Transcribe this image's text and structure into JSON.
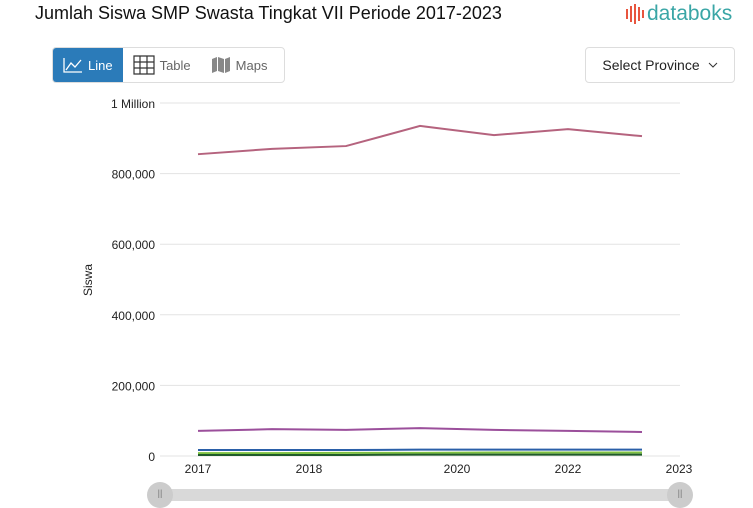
{
  "title": "Jumlah Siswa SMP Swasta Tingkat VII Periode 2017-2023",
  "logo": "databoks",
  "tabs": [
    {
      "label": "Line",
      "icon": "line-chart-icon"
    },
    {
      "label": "Table",
      "icon": "table-icon"
    },
    {
      "label": "Maps",
      "icon": "map-icon"
    }
  ],
  "select": {
    "label": "Select Province"
  },
  "slider": {
    "left_label": "||",
    "right_label": "||"
  },
  "chart_data": {
    "type": "line",
    "title": "Jumlah Siswa SMP Swasta Tingkat VII Periode 2017-2023",
    "ylabel": "Siswa",
    "ylim": [
      0,
      1000000
    ],
    "yticks": [
      {
        "v": 0,
        "label": "0"
      },
      {
        "v": 200000,
        "label": "200,000"
      },
      {
        "v": 400000,
        "label": "400,000"
      },
      {
        "v": 600000,
        "label": "600,000"
      },
      {
        "v": 800000,
        "label": "800,000"
      },
      {
        "v": 1000000,
        "label": "1 Million"
      }
    ],
    "xticks": [
      {
        "x": 0,
        "label": "2017"
      },
      {
        "x": 1.5,
        "label": "2018"
      },
      {
        "x": 3.5,
        "label": "2020"
      },
      {
        "x": 5,
        "label": "2022"
      },
      {
        "x": 6.5,
        "label": "2023"
      }
    ],
    "points": 7,
    "series": [
      {
        "color": "#b5637e",
        "values": [
          855000,
          870000,
          878000,
          935000,
          909000,
          926000,
          906000
        ]
      },
      {
        "color": "#9b4f9b",
        "values": [
          71000,
          76000,
          74000,
          79000,
          74000,
          71000,
          68000
        ]
      },
      {
        "color": "#2a5fa8",
        "values": [
          17000,
          17000,
          17000,
          18000,
          18000,
          18000,
          18000
        ]
      },
      {
        "color": "#7fc241",
        "values": [
          8000,
          8000,
          9000,
          9000,
          10000,
          10000,
          10000
        ]
      },
      {
        "color": "#1f5b2a",
        "values": [
          3000,
          3000,
          3000,
          4000,
          4000,
          4000,
          4000
        ]
      }
    ]
  }
}
